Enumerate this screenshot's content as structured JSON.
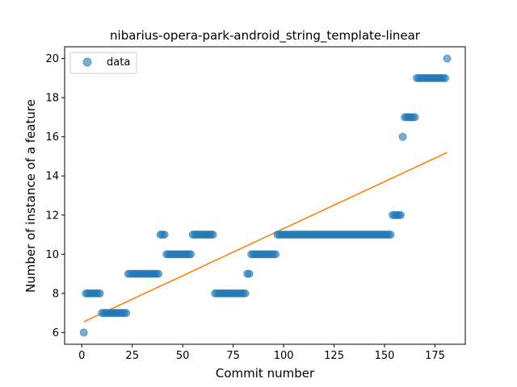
{
  "chart_data": {
    "type": "scatter",
    "title": "nibarius-opera-park-android_string_template-linear",
    "xlabel": "Commit number",
    "ylabel": "Number of instance of a feature",
    "xlim": [
      -8.5,
      190
    ],
    "ylim": [
      5.4,
      20.6
    ],
    "xticks": [
      0,
      25,
      50,
      75,
      100,
      125,
      150,
      175
    ],
    "yticks": [
      6,
      8,
      10,
      12,
      14,
      16,
      18,
      20
    ],
    "legend": {
      "placement": "top-left",
      "entries": [
        "data"
      ]
    },
    "colors": {
      "scatter": "#1f77b4",
      "fit": "#ff7f0e"
    },
    "series": [
      {
        "name": "data",
        "kind": "scatter",
        "segments": [
          {
            "x_start": 1,
            "x_end": 1,
            "y": 6
          },
          {
            "x_start": 2,
            "x_end": 9,
            "y": 8
          },
          {
            "x_start": 10,
            "x_end": 22,
            "y": 7
          },
          {
            "x_start": 23,
            "x_end": 38,
            "y": 9
          },
          {
            "x_start": 39,
            "x_end": 41,
            "y": 11
          },
          {
            "x_start": 42,
            "x_end": 54,
            "y": 10
          },
          {
            "x_start": 55,
            "x_end": 65,
            "y": 11
          },
          {
            "x_start": 66,
            "x_end": 81,
            "y": 8
          },
          {
            "x_start": 82,
            "x_end": 83,
            "y": 9
          },
          {
            "x_start": 84,
            "x_end": 96,
            "y": 10
          },
          {
            "x_start": 97,
            "x_end": 153,
            "y": 11
          },
          {
            "x_start": 154,
            "x_end": 158,
            "y": 12
          },
          {
            "x_start": 159,
            "x_end": 159,
            "y": 16
          },
          {
            "x_start": 160,
            "x_end": 165,
            "y": 17
          },
          {
            "x_start": 166,
            "x_end": 180,
            "y": 19
          },
          {
            "x_start": 181,
            "x_end": 181,
            "y": 20
          }
        ]
      },
      {
        "kind": "line",
        "x": [
          1,
          181
        ],
        "y": [
          6.55,
          15.2
        ]
      }
    ]
  }
}
